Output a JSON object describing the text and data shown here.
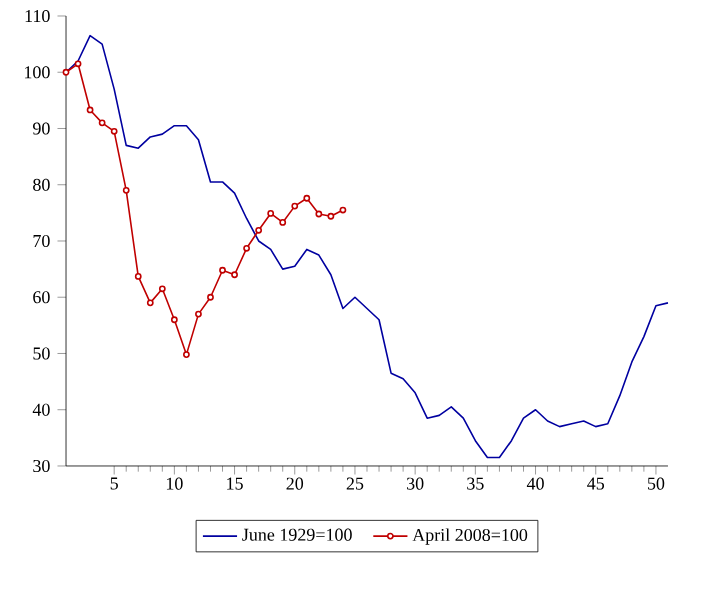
{
  "chart_data": {
    "type": "line",
    "xlim": [
      1,
      51
    ],
    "ylim": [
      30,
      110
    ],
    "xticks": [
      5,
      10,
      15,
      20,
      25,
      30,
      35,
      40,
      45,
      50
    ],
    "yticks": [
      30,
      40,
      50,
      60,
      70,
      80,
      90,
      100,
      110
    ],
    "legend": "bottom",
    "grid": false,
    "series": [
      {
        "name": "June 1929=100",
        "color": "#0000a0",
        "marker": "none",
        "x": [
          1,
          2,
          3,
          4,
          5,
          6,
          7,
          8,
          9,
          10,
          11,
          12,
          13,
          14,
          15,
          16,
          17,
          18,
          19,
          20,
          21,
          22,
          23,
          24,
          25,
          26,
          27,
          28,
          29,
          30,
          31,
          32,
          33,
          34,
          35,
          36,
          37,
          38,
          39,
          40,
          41,
          42,
          43,
          44,
          45,
          46,
          47,
          48,
          49,
          50,
          51
        ],
        "values": [
          100,
          102,
          106.5,
          105,
          97,
          87,
          86.5,
          88.5,
          89,
          90.5,
          90.5,
          88,
          80.5,
          80.5,
          78.5,
          74,
          70,
          68.5,
          65,
          65.5,
          68.5,
          67.5,
          64,
          58,
          60,
          58,
          56,
          46.5,
          45.5,
          43,
          38.5,
          39,
          40.5,
          38.5,
          34.5,
          31.5,
          31.5,
          34.5,
          38.5,
          40,
          38,
          37,
          37.5,
          38,
          37,
          37.5,
          42.5,
          48.5,
          53,
          58.5,
          59
        ]
      },
      {
        "name": "April 2008=100",
        "color": "#c00000",
        "marker": "circle",
        "x": [
          1,
          2,
          3,
          4,
          5,
          6,
          7,
          8,
          9,
          10,
          11,
          12,
          13,
          14,
          15,
          16,
          17,
          18,
          19,
          20,
          21,
          22,
          23,
          24
        ],
        "values": [
          100,
          101.5,
          93.3,
          91,
          89.5,
          79,
          63.7,
          59,
          61.5,
          56,
          49.8,
          57,
          60,
          64.8,
          64,
          68.7,
          71.9,
          74.9,
          73.3,
          76.2,
          77.6,
          74.8,
          74.4,
          75.5
        ]
      }
    ]
  }
}
